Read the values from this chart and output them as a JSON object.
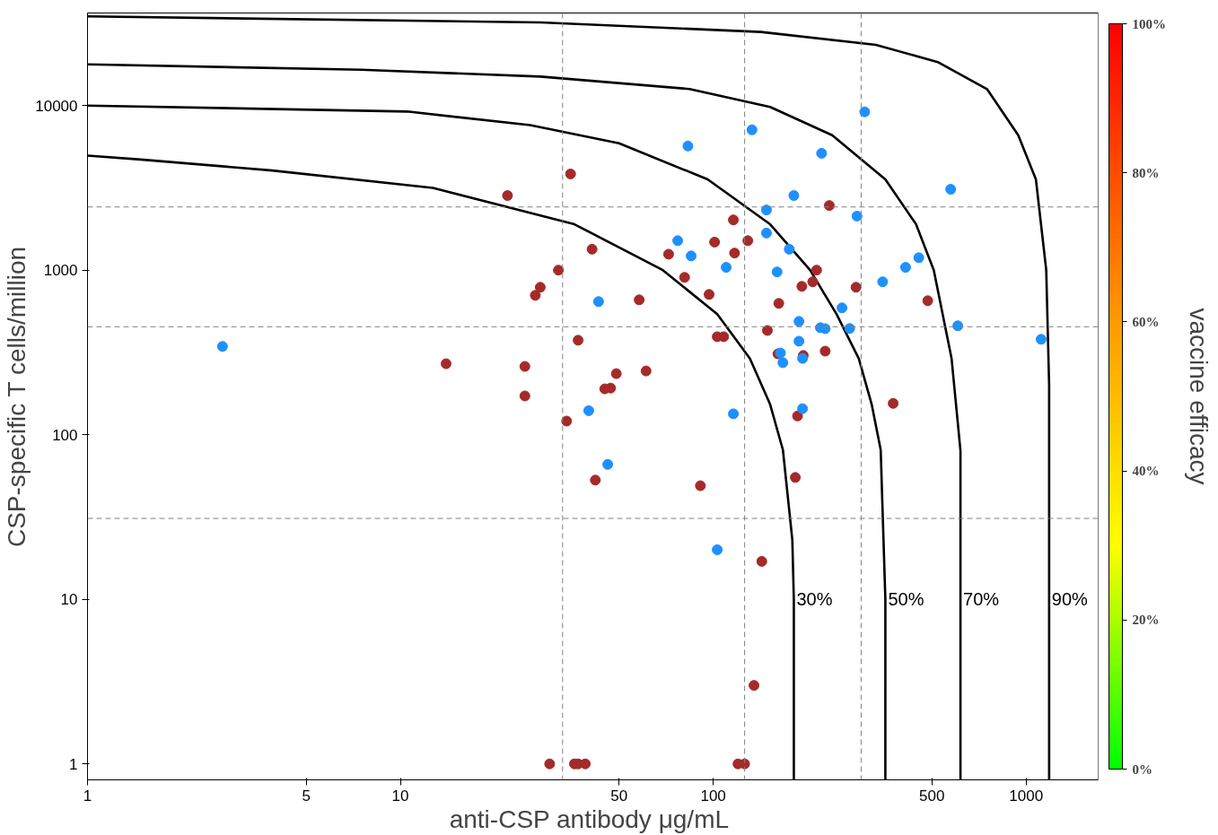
{
  "chart_data": {
    "type": "scatter",
    "xlabel": "anti-CSP antibody  μg/mL",
    "ylabel": "CSP-specific T cells/million",
    "clabel": "vaccine efficacy",
    "xlim": [
      1,
      1700
    ],
    "ylim": [
      0.8,
      36500
    ],
    "xticks": [
      1,
      5,
      10,
      50,
      100,
      500,
      1000
    ],
    "yticks": [
      1,
      10,
      100,
      1000,
      10000
    ],
    "log": "xy",
    "grid": false,
    "marker": "circle",
    "clim": [
      0,
      100
    ],
    "cticks": [
      {
        "value": 0,
        "label": "0%"
      },
      {
        "value": 20,
        "label": "20%"
      },
      {
        "value": 40,
        "label": "40%"
      },
      {
        "value": 60,
        "label": "60%"
      },
      {
        "value": 80,
        "label": "80%"
      },
      {
        "value": 100,
        "label": "100%"
      }
    ],
    "ref_lines": [
      {
        "axis": "x",
        "value": 33,
        "color": "#808080",
        "line_style": "dashed"
      },
      {
        "axis": "x",
        "value": 126,
        "color": "#808080",
        "line_style": "dashed"
      },
      {
        "axis": "x",
        "value": 297,
        "color": "#808080",
        "line_style": "dashed"
      },
      {
        "axis": "y",
        "value": 2420,
        "color": "#808080",
        "line_style": "dashed"
      },
      {
        "axis": "y",
        "value": 453,
        "color": "#808080",
        "line_style": "dashed"
      },
      {
        "axis": "y",
        "value": 31,
        "color": "#808080",
        "line_style": "dashed"
      }
    ],
    "series": [
      {
        "type": "line",
        "name": "30%",
        "color": "#000000",
        "marker": "none",
        "x": [
          181,
          181,
          179,
          167,
          152,
          131,
          103,
          69,
          36,
          12.7,
          3.9,
          1.48,
          1
        ],
        "values": [
          0.8,
          10,
          23,
          81,
          153,
          290,
          540,
          1000,
          1900,
          3160,
          4030,
          4700,
          4960
        ]
      },
      {
        "type": "line",
        "name": "50%",
        "color": "#000000",
        "marker": "none",
        "x": [
          355,
          355,
          343,
          321,
          292,
          248,
          204,
          152,
          96,
          50,
          26,
          10.5,
          1
        ],
        "values": [
          0.8,
          10,
          81,
          153,
          290,
          540,
          1000,
          1900,
          3560,
          5900,
          7600,
          9200,
          10000
        ]
      },
      {
        "type": "line",
        "name": "70%",
        "color": "#000000",
        "marker": "none",
        "x": [
          617,
          617,
          617,
          578,
          507,
          445,
          355,
          240,
          152,
          84,
          28,
          7.5,
          1
        ],
        "values": [
          0.8,
          10,
          80,
          290,
          1000,
          1900,
          3560,
          6600,
          9800,
          12600,
          15000,
          16500,
          17800
        ]
      },
      {
        "type": "line",
        "name": "90%",
        "color": "#000000",
        "marker": "none",
        "x": [
          1185,
          1185,
          1185,
          1160,
          1075,
          944,
          750,
          525,
          331,
          142,
          28,
          1
        ],
        "values": [
          0.8,
          10,
          200,
          1000,
          3560,
          6600,
          12600,
          18300,
          23400,
          28000,
          32000,
          34800
        ]
      },
      {
        "color": "#a52a2a",
        "x": [
          22,
          35,
          41,
          72,
          81,
          101,
          116,
          129,
          117,
          32,
          28,
          27,
          58,
          97,
          37,
          103,
          108,
          149,
          162,
          192,
          208,
          214,
          235,
          286,
          485,
          14,
          25,
          25,
          34,
          45,
          47,
          49,
          61,
          42,
          91,
          183,
          186,
          194,
          228,
          161,
          376,
          143,
          135,
          30,
          36,
          37,
          39,
          120,
          126
        ],
        "values": [
          2840,
          3840,
          1340,
          1250,
          904,
          1480,
          2020,
          1510,
          1270,
          1000,
          787,
          703,
          660,
          712,
          375,
          394,
          394,
          430,
          628,
          797,
          849,
          1000,
          2470,
          787,
          652,
          270,
          260,
          172,
          121,
          190,
          192,
          235,
          244,
          53,
          49,
          55,
          130,
          303,
          322,
          310,
          155,
          17,
          3.0,
          1,
          1,
          1,
          1,
          1,
          1
        ]
      },
      {
        "color": "#1e90ff",
        "x": [
          2.7,
          83,
          133,
          222,
          305,
          574,
          181,
          148,
          288,
          77,
          85,
          148,
          175,
          110,
          160,
          348,
          412,
          454,
          258,
          188,
          220,
          273,
          228,
          188,
          605,
          1117,
          164,
          167,
          193,
          43,
          40,
          46,
          116,
          193,
          103
        ],
        "values": [
          344,
          5680,
          7120,
          5130,
          9160,
          3100,
          2840,
          2320,
          2130,
          1510,
          1220,
          1680,
          1340,
          1040,
          975,
          849,
          1040,
          1190,
          590,
          488,
          447,
          442,
          441,
          370,
          459,
          380,
          314,
          274,
          291,
          644,
          140,
          66,
          134,
          144,
          20
        ]
      }
    ]
  }
}
